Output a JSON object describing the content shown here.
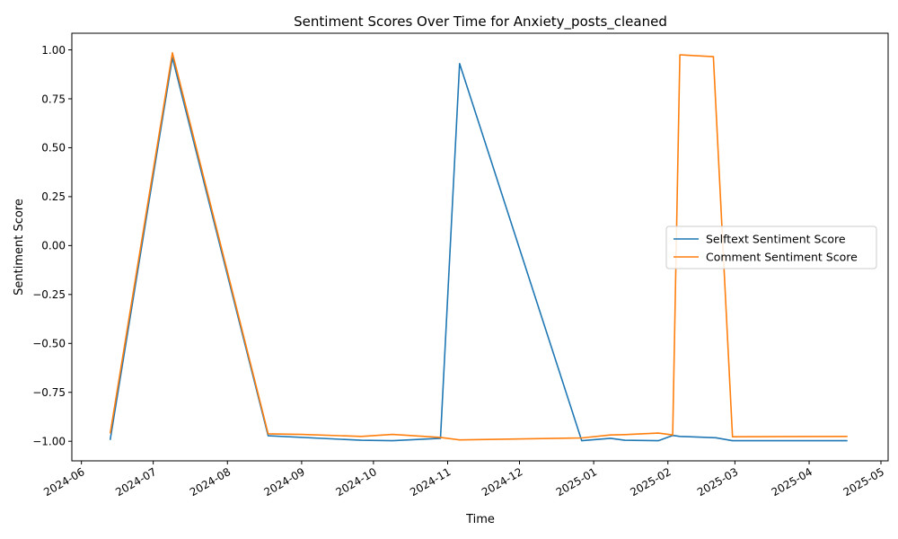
{
  "chart_data": {
    "type": "line",
    "title": "Sentiment Scores Over Time for Anxiety_posts_cleaned",
    "xlabel": "Time",
    "ylabel": "Sentiment Score",
    "xlim": [
      "2024-05-28",
      "2025-05-04"
    ],
    "ylim": [
      -1.1,
      1.085
    ],
    "x_ticks": [
      "2024-06",
      "2024-07",
      "2024-08",
      "2024-09",
      "2024-10",
      "2024-11",
      "2024-12",
      "2025-01",
      "2025-02",
      "2025-03",
      "2025-04",
      "2025-05"
    ],
    "y_ticks": [
      "1.00",
      "0.75",
      "0.50",
      "0.25",
      "0.00",
      "−0.25",
      "−0.50",
      "−0.75",
      "−1.00"
    ],
    "grid": false,
    "legend_position": "center-right",
    "series": [
      {
        "name": "Selftext Sentiment Score",
        "color": "#1f77b4",
        "points": [
          [
            "2024-06-13",
            -0.993
          ],
          [
            "2024-07-09",
            0.96
          ],
          [
            "2024-08-18",
            -0.972
          ],
          [
            "2024-09-26",
            -0.995
          ],
          [
            "2024-10-09",
            -0.997
          ],
          [
            "2024-10-29",
            -0.985
          ],
          [
            "2024-11-06",
            0.93
          ],
          [
            "2024-12-27",
            -0.997
          ],
          [
            "2025-01-08",
            -0.985
          ],
          [
            "2025-01-14",
            -0.995
          ],
          [
            "2025-01-28",
            -0.997
          ],
          [
            "2025-02-03",
            -0.97
          ],
          [
            "2025-02-06",
            -0.975
          ],
          [
            "2025-02-21",
            -0.982
          ],
          [
            "2025-02-28",
            -0.997
          ],
          [
            "2025-04-17",
            -0.997
          ]
        ]
      },
      {
        "name": "Comment Sentiment Score",
        "color": "#ff7f0e",
        "points": [
          [
            "2024-06-13",
            -0.96
          ],
          [
            "2024-07-09",
            0.985
          ],
          [
            "2024-08-18",
            -0.962
          ],
          [
            "2024-09-01",
            -0.965
          ],
          [
            "2024-09-26",
            -0.975
          ],
          [
            "2024-10-09",
            -0.965
          ],
          [
            "2024-10-29",
            -0.98
          ],
          [
            "2024-11-06",
            -0.993
          ],
          [
            "2024-12-27",
            -0.983
          ],
          [
            "2025-01-08",
            -0.968
          ],
          [
            "2025-01-14",
            -0.966
          ],
          [
            "2025-01-28",
            -0.958
          ],
          [
            "2025-02-03",
            -0.968
          ],
          [
            "2025-02-06",
            0.975
          ],
          [
            "2025-02-20",
            0.965
          ],
          [
            "2025-02-28",
            -0.977
          ],
          [
            "2025-04-17",
            -0.975
          ]
        ]
      }
    ]
  }
}
